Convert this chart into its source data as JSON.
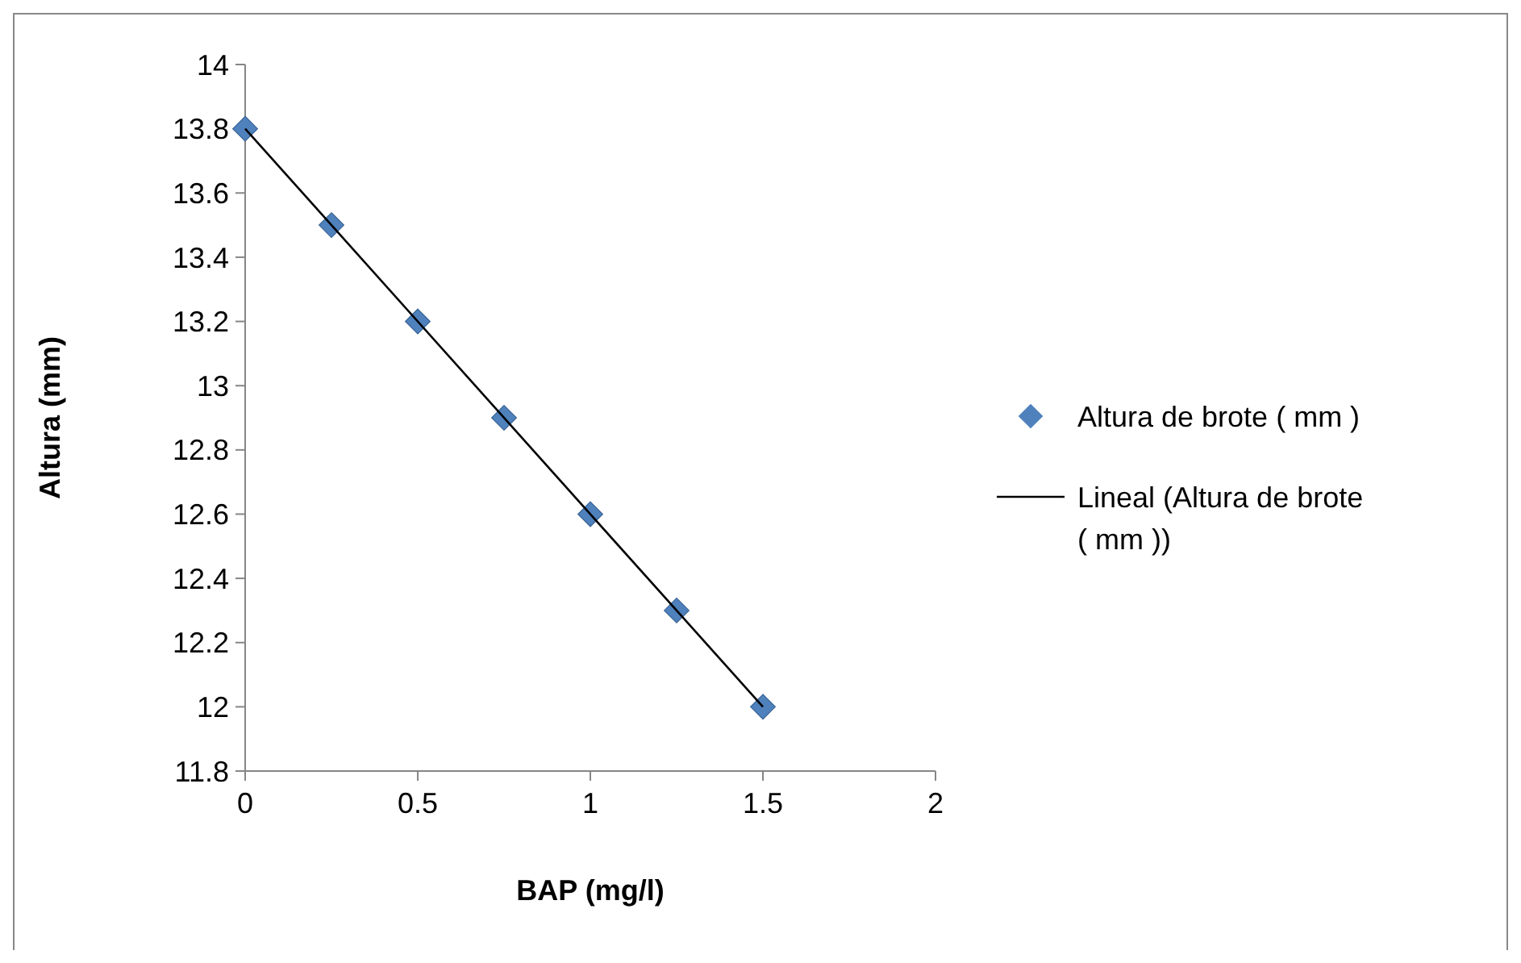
{
  "chart_data": {
    "type": "scatter",
    "xlabel": "BAP (mg/l)",
    "ylabel": "Altura (mm)",
    "x": [
      0,
      0.25,
      0.5,
      0.75,
      1,
      1.25,
      1.5
    ],
    "series": [
      {
        "name": "Altura de brote ( mm )",
        "color": "#4f81bd",
        "marker": "diamond",
        "values": [
          13.8,
          13.5,
          13.2,
          12.9,
          12.6,
          12.3,
          12.0
        ]
      },
      {
        "name": "Lineal (Altura de brote ( mm ))",
        "type": "line",
        "color": "#000000",
        "marker": "none",
        "line_style": "solid",
        "x": [
          0,
          1.5
        ],
        "values": [
          13.8,
          12.0
        ]
      }
    ],
    "xlim": [
      0,
      2
    ],
    "xticks": [
      0,
      0.5,
      1,
      1.5,
      2
    ],
    "ylim": [
      11.8,
      14
    ],
    "yticks": [
      11.8,
      12,
      12.2,
      12.4,
      12.6,
      12.8,
      13,
      13.2,
      13.4,
      13.6,
      13.8,
      14
    ],
    "grid": false,
    "legend": "right"
  }
}
